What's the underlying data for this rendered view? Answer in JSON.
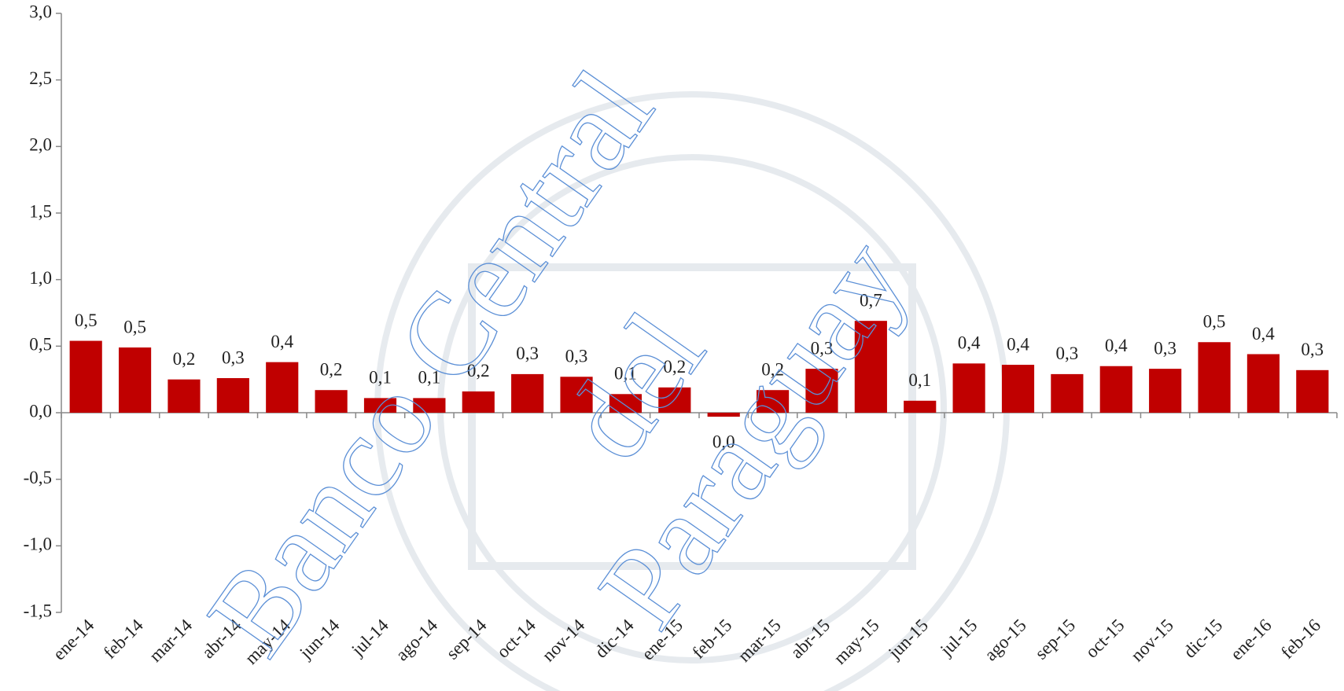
{
  "chart_data": {
    "type": "bar",
    "categories": [
      "ene-14",
      "feb-14",
      "mar-14",
      "abr-14",
      "may-14",
      "jun-14",
      "jul-14",
      "ago-14",
      "sep-14",
      "oct-14",
      "nov-14",
      "dic-14",
      "ene-15",
      "feb-15",
      "mar-15",
      "abr-15",
      "may-15",
      "jun-15",
      "jul-15",
      "ago-15",
      "sep-15",
      "oct-15",
      "nov-15",
      "dic-15",
      "ene-16",
      "feb-16"
    ],
    "values": [
      0.54,
      0.49,
      0.25,
      0.26,
      0.38,
      0.17,
      0.11,
      0.11,
      0.16,
      0.29,
      0.27,
      0.14,
      0.19,
      -0.03,
      0.17,
      0.33,
      0.69,
      0.09,
      0.37,
      0.36,
      0.29,
      0.35,
      0.33,
      0.53,
      0.44,
      0.32
    ],
    "value_labels": [
      "0,5",
      "0,5",
      "0,2",
      "0,3",
      "0,4",
      "0,2",
      "0,1",
      "0,1",
      "0,2",
      "0,3",
      "0,3",
      "0,1",
      "0,2",
      "0,0",
      "0,2",
      "0,3",
      "0,7",
      "0,1",
      "0,4",
      "0,4",
      "0,3",
      "0,4",
      "0,3",
      "0,5",
      "0,4",
      "0,3"
    ],
    "color": "#c00000",
    "ylim": [
      -1.5,
      3.0
    ],
    "yticks": [
      {
        "value": -1.5,
        "label": "-1,5"
      },
      {
        "value": -1.0,
        "label": "-1,0"
      },
      {
        "value": -0.5,
        "label": "-0,5"
      },
      {
        "value": 0.0,
        "label": "0,0"
      },
      {
        "value": 0.5,
        "label": "0,5"
      },
      {
        "value": 1.0,
        "label": "1,0"
      },
      {
        "value": 1.5,
        "label": "1,5"
      },
      {
        "value": 2.0,
        "label": "2,0"
      },
      {
        "value": 2.5,
        "label": "2,5"
      },
      {
        "value": 3.0,
        "label": "3,0"
      }
    ],
    "grid": false,
    "watermark": [
      "Banco Central",
      "del",
      "Paraguay"
    ]
  }
}
